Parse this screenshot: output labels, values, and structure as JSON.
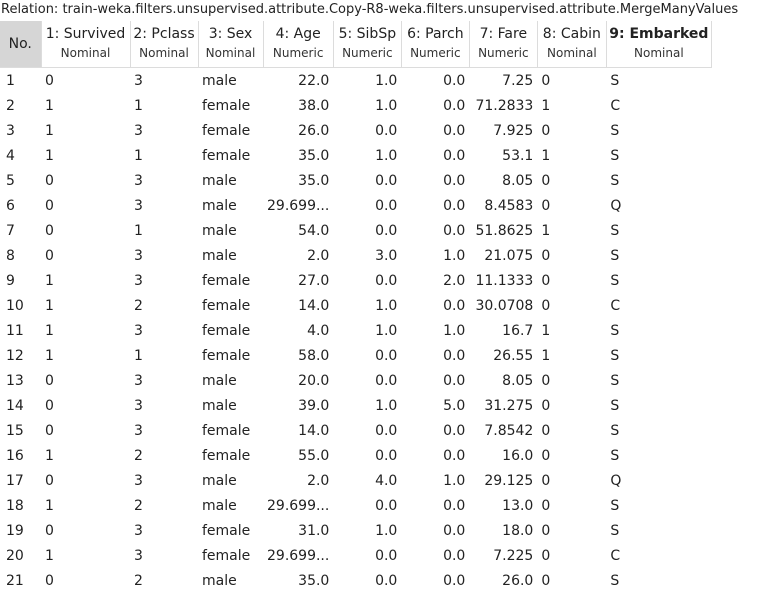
{
  "relation": "Relation: train-weka.filters.unsupervised.attribute.Copy-R8-weka.filters.unsupervised.attribute.MergeManyValues",
  "columns": [
    {
      "name": "No.",
      "type": ""
    },
    {
      "name": "1: Survived",
      "type": "Nominal"
    },
    {
      "name": "2: Pclass",
      "type": "Nominal"
    },
    {
      "name": "3: Sex",
      "type": "Nominal"
    },
    {
      "name": "4: Age",
      "type": "Numeric"
    },
    {
      "name": "5: SibSp",
      "type": "Numeric"
    },
    {
      "name": "6: Parch",
      "type": "Numeric"
    },
    {
      "name": "7: Fare",
      "type": "Numeric"
    },
    {
      "name": "8: Cabin",
      "type": "Nominal"
    },
    {
      "name": "9: Embarked",
      "type": "Nominal"
    }
  ],
  "rows": [
    [
      "1",
      "0",
      "3",
      "male",
      "22.0",
      "1.0",
      "0.0",
      "7.25",
      "0",
      "S"
    ],
    [
      "2",
      "1",
      "1",
      "female",
      "38.0",
      "1.0",
      "0.0",
      "71.2833",
      "1",
      "C"
    ],
    [
      "3",
      "1",
      "3",
      "female",
      "26.0",
      "0.0",
      "0.0",
      "7.925",
      "0",
      "S"
    ],
    [
      "4",
      "1",
      "1",
      "female",
      "35.0",
      "1.0",
      "0.0",
      "53.1",
      "1",
      "S"
    ],
    [
      "5",
      "0",
      "3",
      "male",
      "35.0",
      "0.0",
      "0.0",
      "8.05",
      "0",
      "S"
    ],
    [
      "6",
      "0",
      "3",
      "male",
      "29.699...",
      "0.0",
      "0.0",
      "8.4583",
      "0",
      "Q"
    ],
    [
      "7",
      "0",
      "1",
      "male",
      "54.0",
      "0.0",
      "0.0",
      "51.8625",
      "1",
      "S"
    ],
    [
      "8",
      "0",
      "3",
      "male",
      "2.0",
      "3.0",
      "1.0",
      "21.075",
      "0",
      "S"
    ],
    [
      "9",
      "1",
      "3",
      "female",
      "27.0",
      "0.0",
      "2.0",
      "11.1333",
      "0",
      "S"
    ],
    [
      "10",
      "1",
      "2",
      "female",
      "14.0",
      "1.0",
      "0.0",
      "30.0708",
      "0",
      "C"
    ],
    [
      "11",
      "1",
      "3",
      "female",
      "4.0",
      "1.0",
      "1.0",
      "16.7",
      "1",
      "S"
    ],
    [
      "12",
      "1",
      "1",
      "female",
      "58.0",
      "0.0",
      "0.0",
      "26.55",
      "1",
      "S"
    ],
    [
      "13",
      "0",
      "3",
      "male",
      "20.0",
      "0.0",
      "0.0",
      "8.05",
      "0",
      "S"
    ],
    [
      "14",
      "0",
      "3",
      "male",
      "39.0",
      "1.0",
      "5.0",
      "31.275",
      "0",
      "S"
    ],
    [
      "15",
      "0",
      "3",
      "female",
      "14.0",
      "0.0",
      "0.0",
      "7.8542",
      "0",
      "S"
    ],
    [
      "16",
      "1",
      "2",
      "female",
      "55.0",
      "0.0",
      "0.0",
      "16.0",
      "0",
      "S"
    ],
    [
      "17",
      "0",
      "3",
      "male",
      "2.0",
      "4.0",
      "1.0",
      "29.125",
      "0",
      "Q"
    ],
    [
      "18",
      "1",
      "2",
      "male",
      "29.699...",
      "0.0",
      "0.0",
      "13.0",
      "0",
      "S"
    ],
    [
      "19",
      "0",
      "3",
      "female",
      "31.0",
      "1.0",
      "0.0",
      "18.0",
      "0",
      "S"
    ],
    [
      "20",
      "1",
      "3",
      "female",
      "29.699...",
      "0.0",
      "0.0",
      "7.225",
      "0",
      "C"
    ],
    [
      "21",
      "0",
      "2",
      "male",
      "35.0",
      "0.0",
      "0.0",
      "26.0",
      "0",
      "S"
    ]
  ]
}
